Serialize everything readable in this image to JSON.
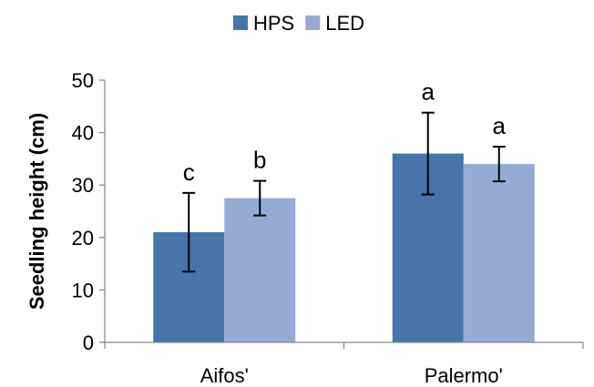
{
  "chart_data": {
    "type": "bar",
    "categories": [
      "Aifos'",
      "Palermo'"
    ],
    "series": [
      {
        "name": "HPS",
        "color": "#4674ab",
        "values": [
          21,
          36
        ],
        "err": [
          7.5,
          7.8
        ],
        "letters": [
          "c",
          "a"
        ]
      },
      {
        "name": "LED",
        "color": "#95abd3",
        "values": [
          27.5,
          34
        ],
        "err": [
          3.3,
          3.3
        ],
        "letters": [
          "b",
          "a"
        ]
      }
    ],
    "ylabel": "Seedling height (cm)",
    "xlabel": "",
    "ylim": [
      0,
      50
    ],
    "yticks": [
      0,
      10,
      20,
      30,
      40,
      50
    ],
    "grid": false,
    "legend_position": "top-center"
  }
}
